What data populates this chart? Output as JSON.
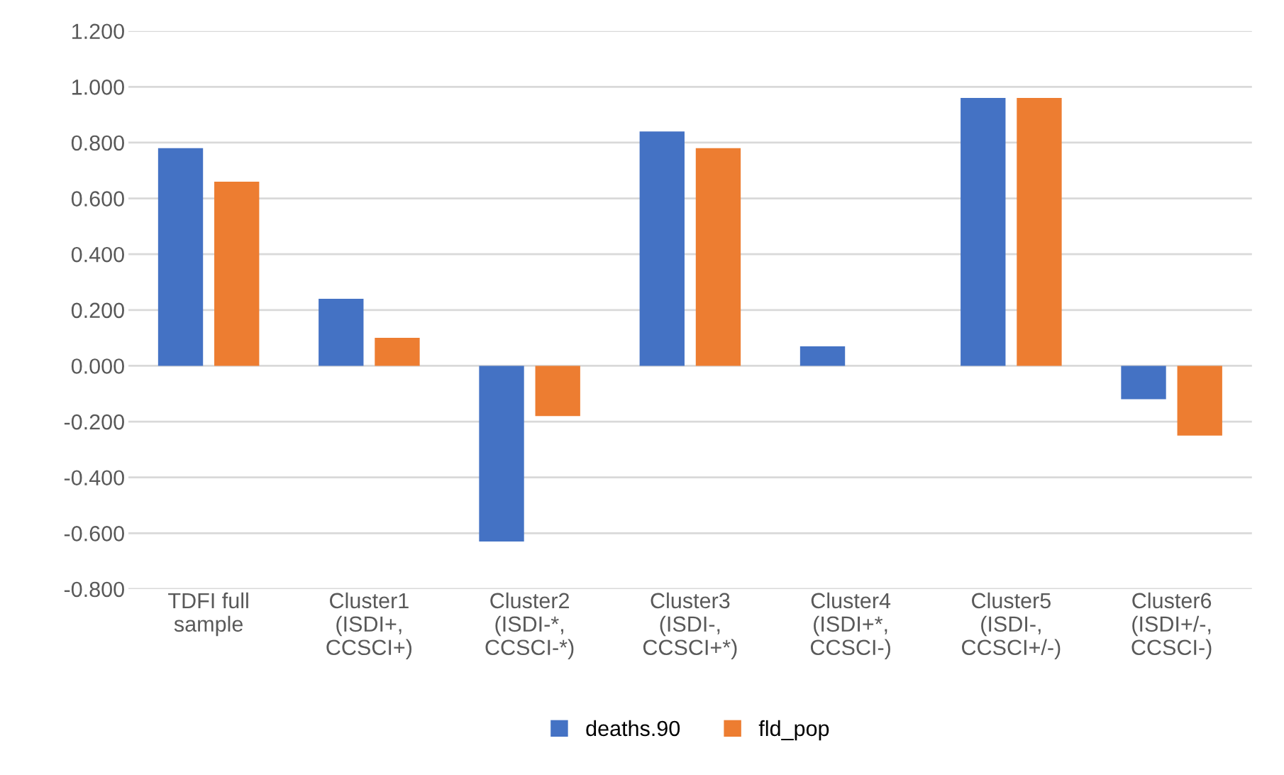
{
  "chart_data": {
    "type": "bar",
    "categories": [
      "TDFI full\nsample",
      "Cluster1\n(ISDI+,\nCCSCI+)",
      "Cluster2\n(ISDI-*,\nCCSCI-*)",
      "Cluster3\n(ISDI-,\nCCSCI+*)",
      "Cluster4\n(ISDI+*,\nCCSCI-)",
      "Cluster5\n(ISDI-,\nCCSCI+/-)",
      "Cluster6\n(ISDI+/-,\nCCSCI-)"
    ],
    "series": [
      {
        "name": "deaths.90",
        "color": "#4472c4",
        "values": [
          0.78,
          0.24,
          -0.63,
          0.84,
          0.07,
          0.96,
          -0.12
        ]
      },
      {
        "name": "fld_pop",
        "color": "#ed7d31",
        "values": [
          0.66,
          0.1,
          -0.18,
          0.78,
          0.0,
          0.96,
          -0.25
        ]
      }
    ],
    "ylim": [
      -0.8,
      1.2
    ],
    "yticks": [
      {
        "value": -0.8,
        "label": "-0.800"
      },
      {
        "value": -0.6,
        "label": "-0.600"
      },
      {
        "value": -0.4,
        "label": "-0.400"
      },
      {
        "value": -0.2,
        "label": "-0.200"
      },
      {
        "value": 0,
        "label": "0.000"
      },
      {
        "value": 0.2,
        "label": "0.200"
      },
      {
        "value": 0.4,
        "label": "0.400"
      },
      {
        "value": 0.6,
        "label": "0.600"
      },
      {
        "value": 0.8,
        "label": "0.800"
      },
      {
        "value": 1.0,
        "label": "1.000"
      },
      {
        "value": 1.2,
        "label": "1.200"
      }
    ],
    "grid": "y",
    "legend": "bottom"
  }
}
